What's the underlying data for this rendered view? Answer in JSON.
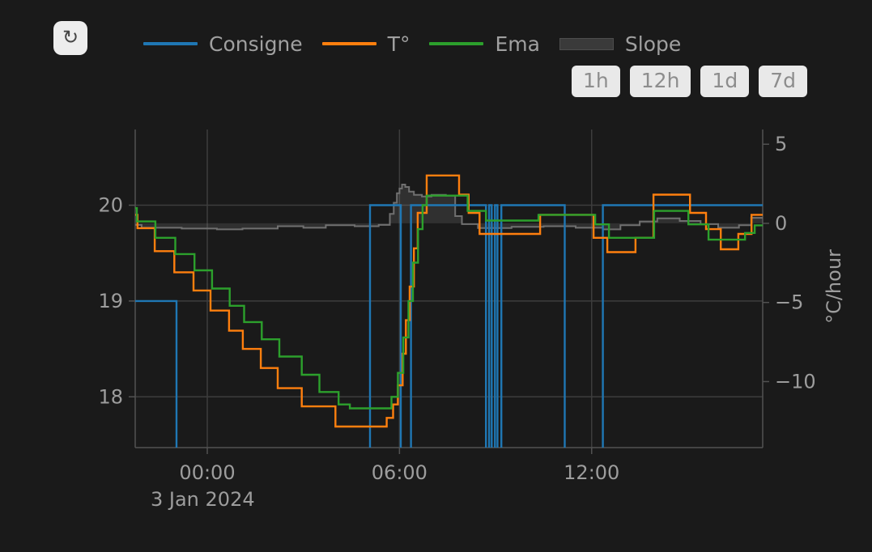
{
  "toolbar": {
    "refresh_glyph": "↻",
    "range_buttons": [
      "1h",
      "12h",
      "1d",
      "7d"
    ]
  },
  "legend": {
    "items": [
      {
        "label": "Consigne",
        "color": "#1f77b4",
        "swatch": "line"
      },
      {
        "label": "T°",
        "color": "#ff7f0e",
        "swatch": "line"
      },
      {
        "label": "Ema",
        "color": "#2ca02c",
        "swatch": "line"
      },
      {
        "label": "Slope",
        "color": "#3a3a3a",
        "swatch": "fill"
      }
    ]
  },
  "chart_data": {
    "type": "line",
    "title": "",
    "legend_position": "top",
    "grid": true,
    "x_axis": {
      "date_label": "3 Jan 2024",
      "units": "time of day",
      "range_hours": [
        -2.25,
        17.34
      ],
      "ticks": [
        {
          "value": 0,
          "label": "00:00"
        },
        {
          "value": 6,
          "label": "06:00"
        },
        {
          "value": 12,
          "label": "12:00"
        }
      ]
    },
    "y_axis_left": {
      "units": "°C",
      "range": [
        17.47,
        20.79
      ],
      "ticks": [
        {
          "value": 18,
          "label": "18"
        },
        {
          "value": 19,
          "label": "19"
        },
        {
          "value": 20,
          "label": "20"
        }
      ]
    },
    "y_axis_right": {
      "title": "°C/hour",
      "range": [
        -14.17,
        5.93
      ],
      "ticks": [
        {
          "value": 5,
          "label": "5"
        },
        {
          "value": 0,
          "label": "0"
        },
        {
          "value": -5,
          "label": "−5"
        },
        {
          "value": -10,
          "label": "−10"
        }
      ]
    },
    "series": [
      {
        "name": "Consigne",
        "color": "#1f77b4",
        "axis": "left",
        "mode": "poly",
        "width": 2.4,
        "z": 1,
        "points": [
          [
            -2.25,
            19
          ],
          [
            -0.96,
            19
          ],
          [
            -0.96,
            17.2
          ],
          [
            5.08,
            17.2
          ],
          [
            5.08,
            20
          ],
          [
            6.04,
            20
          ],
          [
            6.04,
            17.2
          ],
          [
            6.36,
            17.2
          ],
          [
            6.36,
            20
          ],
          [
            8.7,
            20
          ],
          [
            8.7,
            17.2
          ],
          [
            8.8,
            17.2
          ],
          [
            8.8,
            20
          ],
          [
            8.88,
            20
          ],
          [
            8.88,
            17.2
          ],
          [
            8.98,
            17.2
          ],
          [
            8.98,
            20
          ],
          [
            9.06,
            20
          ],
          [
            9.06,
            17.2
          ],
          [
            9.18,
            17.2
          ],
          [
            9.18,
            20
          ],
          [
            11.16,
            20
          ],
          [
            11.16,
            17.2
          ],
          [
            12.35,
            17.2
          ],
          [
            12.35,
            20
          ],
          [
            17.34,
            20
          ]
        ]
      },
      {
        "name": "T°",
        "color": "#ff7f0e",
        "axis": "left",
        "mode": "step",
        "width": 2.4,
        "z": 2,
        "points": [
          [
            -2.25,
            19.9
          ],
          [
            -2.18,
            19.76
          ],
          [
            -1.64,
            19.52
          ],
          [
            -1.03,
            19.3
          ],
          [
            -0.43,
            19.11
          ],
          [
            0.1,
            18.9
          ],
          [
            0.68,
            18.69
          ],
          [
            1.11,
            18.5
          ],
          [
            1.67,
            18.3
          ],
          [
            2.2,
            18.09
          ],
          [
            2.95,
            17.9
          ],
          [
            4.0,
            17.69
          ],
          [
            5.6,
            17.78
          ],
          [
            5.8,
            17.92
          ],
          [
            5.95,
            18.12
          ],
          [
            6.1,
            18.45
          ],
          [
            6.2,
            18.8
          ],
          [
            6.32,
            19.15
          ],
          [
            6.45,
            19.55
          ],
          [
            6.57,
            19.92
          ],
          [
            6.85,
            20.31
          ],
          [
            7.86,
            20.11
          ],
          [
            8.16,
            19.92
          ],
          [
            8.5,
            19.7
          ],
          [
            10.39,
            19.9
          ],
          [
            12.06,
            19.66
          ],
          [
            12.49,
            19.51
          ],
          [
            13.37,
            19.66
          ],
          [
            13.93,
            20.11
          ],
          [
            15.07,
            19.92
          ],
          [
            15.57,
            19.75
          ],
          [
            16.03,
            19.54
          ],
          [
            16.58,
            19.7
          ],
          [
            16.99,
            19.9
          ],
          [
            17.34,
            19.9
          ]
        ]
      },
      {
        "name": "Ema",
        "color": "#2ca02c",
        "axis": "left",
        "mode": "step",
        "width": 2.4,
        "z": 3,
        "points": [
          [
            -2.25,
            19.97
          ],
          [
            -2.2,
            19.83
          ],
          [
            -1.62,
            19.66
          ],
          [
            -1.0,
            19.49
          ],
          [
            -0.4,
            19.32
          ],
          [
            0.15,
            19.13
          ],
          [
            0.7,
            18.95
          ],
          [
            1.15,
            18.78
          ],
          [
            1.7,
            18.6
          ],
          [
            2.25,
            18.42
          ],
          [
            2.95,
            18.23
          ],
          [
            3.5,
            18.05
          ],
          [
            4.1,
            17.92
          ],
          [
            4.45,
            17.88
          ],
          [
            5.75,
            18.0
          ],
          [
            5.95,
            18.25
          ],
          [
            6.12,
            18.62
          ],
          [
            6.28,
            19.0
          ],
          [
            6.42,
            19.4
          ],
          [
            6.58,
            19.75
          ],
          [
            6.72,
            20.0
          ],
          [
            6.85,
            20.1
          ],
          [
            8.13,
            19.94
          ],
          [
            8.7,
            19.84
          ],
          [
            10.34,
            19.9
          ],
          [
            12.11,
            19.8
          ],
          [
            12.54,
            19.66
          ],
          [
            13.95,
            19.94
          ],
          [
            15.02,
            19.8
          ],
          [
            15.65,
            19.64
          ],
          [
            16.79,
            19.71
          ],
          [
            17.09,
            19.79
          ],
          [
            17.34,
            19.79
          ]
        ]
      },
      {
        "name": "Slope",
        "color": "#707070",
        "axis": "right",
        "mode": "step",
        "width": 2,
        "z": 0,
        "fill": "rgba(150,150,150,0.18)",
        "fill_to": 0,
        "points": [
          [
            -2.25,
            -0.1
          ],
          [
            -2.05,
            -0.28
          ],
          [
            -0.8,
            -0.33
          ],
          [
            0.3,
            -0.38
          ],
          [
            1.1,
            -0.33
          ],
          [
            2.2,
            -0.18
          ],
          [
            3.0,
            -0.28
          ],
          [
            3.7,
            -0.12
          ],
          [
            4.6,
            -0.18
          ],
          [
            5.35,
            -0.1
          ],
          [
            5.7,
            0.6
          ],
          [
            5.82,
            1.3
          ],
          [
            5.92,
            1.9
          ],
          [
            6.0,
            2.2
          ],
          [
            6.08,
            2.45
          ],
          [
            6.18,
            2.3
          ],
          [
            6.3,
            2.0
          ],
          [
            6.45,
            1.8
          ],
          [
            6.7,
            1.7
          ],
          [
            7.0,
            1.8
          ],
          [
            7.45,
            1.75
          ],
          [
            7.74,
            0.46
          ],
          [
            7.95,
            -0.05
          ],
          [
            8.45,
            -0.3
          ],
          [
            9.5,
            -0.22
          ],
          [
            10.5,
            -0.18
          ],
          [
            11.5,
            -0.28
          ],
          [
            12.35,
            -0.38
          ],
          [
            12.9,
            -0.12
          ],
          [
            13.5,
            0.12
          ],
          [
            14.05,
            0.32
          ],
          [
            14.75,
            0.15
          ],
          [
            15.4,
            -0.05
          ],
          [
            15.95,
            -0.28
          ],
          [
            16.6,
            -0.12
          ],
          [
            16.98,
            0.35
          ],
          [
            17.34,
            0.3
          ]
        ]
      }
    ]
  }
}
